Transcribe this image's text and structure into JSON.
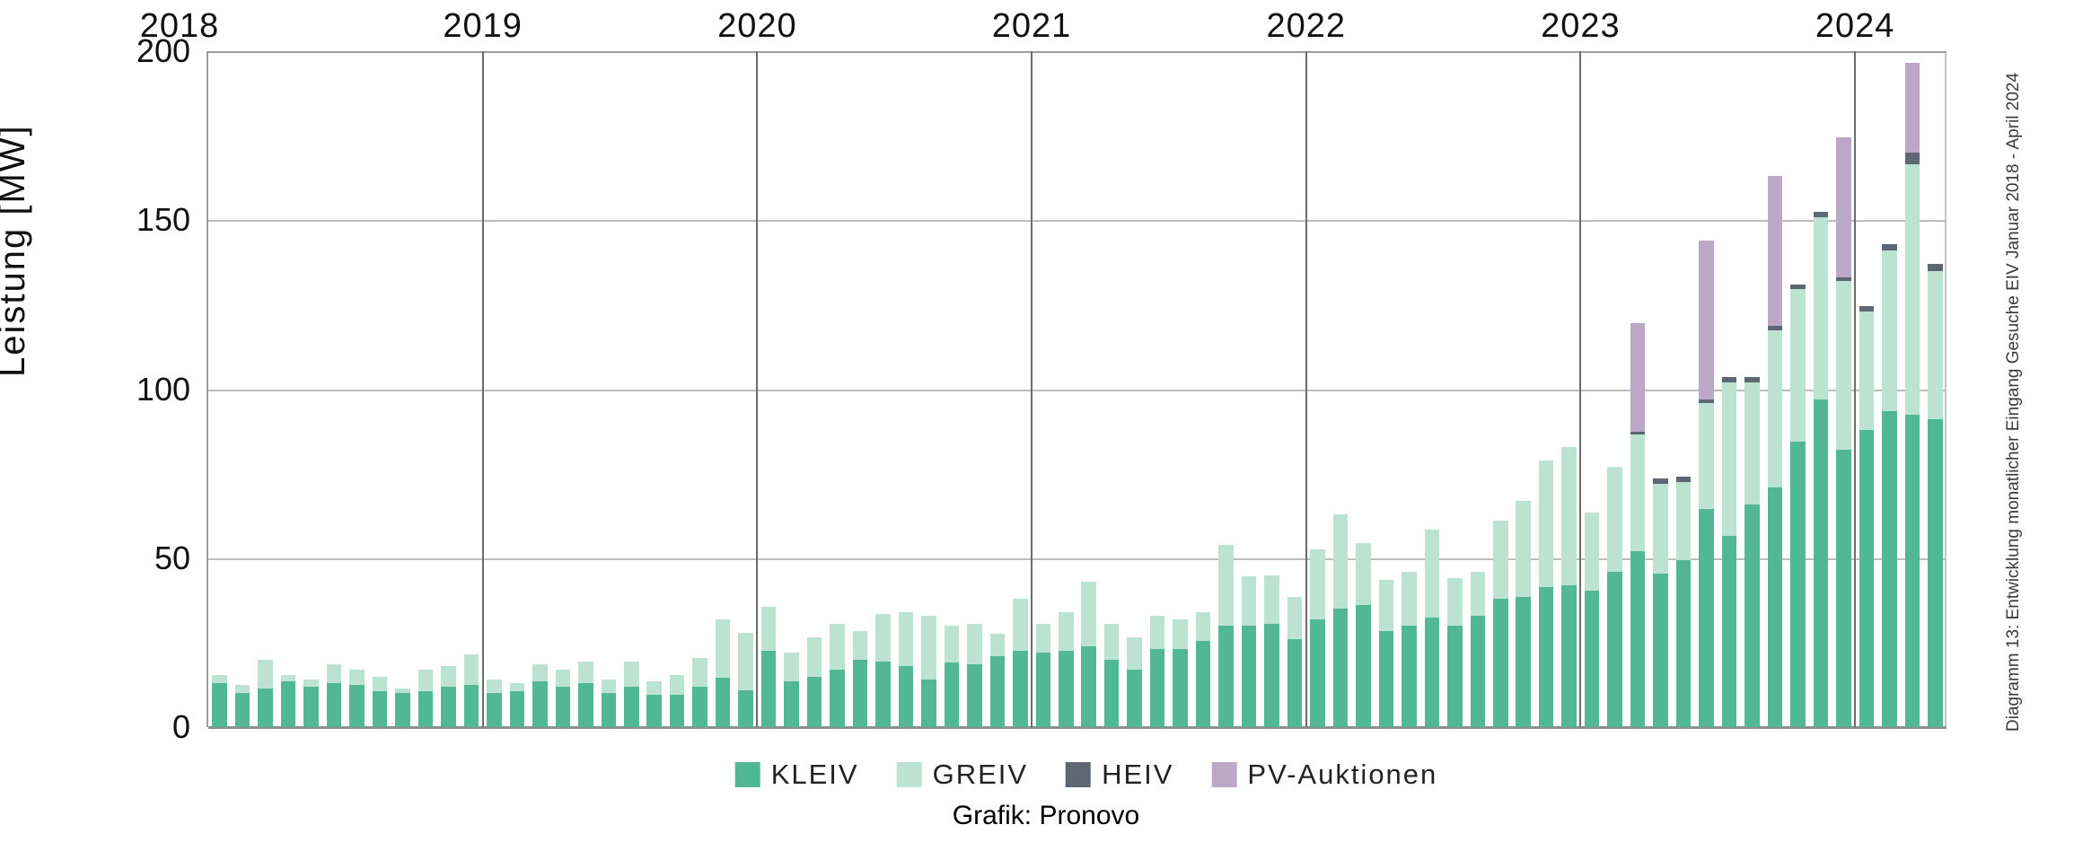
{
  "axis": {
    "y_title": "Leistung [MW]",
    "y_ticks": [
      0,
      50,
      100,
      150,
      200
    ],
    "y_max": 200
  },
  "years": [
    {
      "label": "2018",
      "month_index": 0
    },
    {
      "label": "2019",
      "month_index": 12
    },
    {
      "label": "2020",
      "month_index": 24
    },
    {
      "label": "2021",
      "month_index": 36
    },
    {
      "label": "2022",
      "month_index": 48
    },
    {
      "label": "2023",
      "month_index": 60
    },
    {
      "label": "2024",
      "month_index": 72
    }
  ],
  "legend": [
    {
      "label": "KLEIV",
      "color": "#52b795"
    },
    {
      "label": "GREIV",
      "color": "#bce3d2"
    },
    {
      "label": "HEIV",
      "color": "#5d6771"
    },
    {
      "label": "PV-Auktionen",
      "color": "#bda7c6"
    }
  ],
  "captions": {
    "credit": "Grafik: Pronovo",
    "side": "Diagramm 13: Entwicklung monatlicher Eingang Gesuche EIV Januar 2018 - April 2024"
  },
  "colors": {
    "gridline": "#bdbdbd",
    "yearline": "#6b6b6b",
    "axis": "#9e9e9e"
  },
  "chart_data": {
    "type": "bar",
    "stacked": true,
    "unit": "MW",
    "ylabel": "Leistung [MW]",
    "ylim": [
      0,
      200
    ],
    "gridlines": [
      50,
      100,
      150,
      200
    ],
    "legend_position": "bottom",
    "x": [
      "2018-01",
      "2018-02",
      "2018-03",
      "2018-04",
      "2018-05",
      "2018-06",
      "2018-07",
      "2018-08",
      "2018-09",
      "2018-10",
      "2018-11",
      "2018-12",
      "2019-01",
      "2019-02",
      "2019-03",
      "2019-04",
      "2019-05",
      "2019-06",
      "2019-07",
      "2019-08",
      "2019-09",
      "2019-10",
      "2019-11",
      "2019-12",
      "2020-01",
      "2020-02",
      "2020-03",
      "2020-04",
      "2020-05",
      "2020-06",
      "2020-07",
      "2020-08",
      "2020-09",
      "2020-10",
      "2020-11",
      "2020-12",
      "2021-01",
      "2021-02",
      "2021-03",
      "2021-04",
      "2021-05",
      "2021-06",
      "2021-07",
      "2021-08",
      "2021-09",
      "2021-10",
      "2021-11",
      "2021-12",
      "2022-01",
      "2022-02",
      "2022-03",
      "2022-04",
      "2022-05",
      "2022-06",
      "2022-07",
      "2022-08",
      "2022-09",
      "2022-10",
      "2022-11",
      "2022-12",
      "2023-01",
      "2023-02",
      "2023-03",
      "2023-04",
      "2023-05",
      "2023-06",
      "2023-07",
      "2023-08",
      "2023-09",
      "2023-10",
      "2023-11",
      "2023-12",
      "2024-01",
      "2024-02",
      "2024-03",
      "2024-04"
    ],
    "series": [
      {
        "name": "KLEIV",
        "color": "#52b795",
        "values": [
          13,
          10,
          11.5,
          13.5,
          12,
          13,
          12.5,
          10.5,
          10,
          10.5,
          12,
          12.5,
          10,
          10.5,
          13.5,
          12,
          13,
          10,
          12,
          9.5,
          9.5,
          12,
          14.5,
          11,
          22.5,
          13.5,
          15,
          17,
          20,
          19.5,
          18,
          14,
          19,
          18.5,
          21,
          22.5,
          22,
          22.5,
          24,
          20,
          17,
          23,
          23,
          25.5,
          30,
          30,
          30.5,
          26,
          32,
          35,
          36,
          28.5,
          30,
          32.5,
          30,
          33,
          38,
          38.5,
          41.5,
          42,
          40.5,
          46,
          52,
          45.5,
          49.5,
          64.5,
          56.5,
          66,
          71,
          84.5,
          97,
          82,
          88,
          93.5,
          92.5,
          91
        ]
      },
      {
        "name": "GREIV",
        "color": "#bce3d2",
        "values": [
          2.5,
          2.5,
          8.5,
          2,
          2,
          5.5,
          4.5,
          4.5,
          1.5,
          6.5,
          6,
          9,
          4,
          2.5,
          5,
          5,
          6.5,
          4,
          7.5,
          4,
          6,
          8.5,
          17.5,
          17,
          13,
          8.5,
          11.5,
          13.5,
          8.5,
          14,
          16,
          19,
          11,
          12,
          6.5,
          15.5,
          8.5,
          11.5,
          19,
          10.5,
          9.5,
          10,
          9,
          8.5,
          24,
          14.5,
          14.5,
          12.5,
          20.5,
          28,
          18.5,
          15,
          16,
          26,
          14,
          13,
          23,
          28.5,
          37.5,
          41,
          23,
          31,
          34.5,
          26.5,
          23,
          31.5,
          45.5,
          36,
          46.5,
          45,
          54,
          50,
          35,
          47.5,
          74,
          44
        ]
      },
      {
        "name": "HEIV",
        "color": "#5d6771",
        "values": [
          0,
          0,
          0,
          0,
          0,
          0,
          0,
          0,
          0,
          0,
          0,
          0,
          0,
          0,
          0,
          0,
          0,
          0,
          0,
          0,
          0,
          0,
          0,
          0,
          0,
          0,
          0,
          0,
          0,
          0,
          0,
          0,
          0,
          0,
          0,
          0,
          0,
          0,
          0,
          0,
          0,
          0,
          0,
          0,
          0,
          0,
          0,
          0,
          0,
          0,
          0,
          0,
          0,
          0,
          0,
          0,
          0,
          0,
          0,
          0,
          0,
          0,
          1,
          1.5,
          1.5,
          1,
          1.5,
          1.5,
          1.2,
          1.5,
          1.5,
          1,
          1.5,
          2,
          3.5,
          2
        ]
      },
      {
        "name": "PV-Auktionen",
        "color": "#bda7c6",
        "values": [
          0,
          0,
          0,
          0,
          0,
          0,
          0,
          0,
          0,
          0,
          0,
          0,
          0,
          0,
          0,
          0,
          0,
          0,
          0,
          0,
          0,
          0,
          0,
          0,
          0,
          0,
          0,
          0,
          0,
          0,
          0,
          0,
          0,
          0,
          0,
          0,
          0,
          0,
          0,
          0,
          0,
          0,
          0,
          0,
          0,
          0,
          0,
          0,
          0,
          0,
          0,
          0,
          0,
          0,
          0,
          0,
          0,
          0,
          0,
          0,
          0,
          0,
          32,
          0,
          0,
          47,
          0,
          0,
          44.3,
          0,
          0,
          41.5,
          0,
          0,
          26.5,
          0
        ]
      }
    ]
  }
}
